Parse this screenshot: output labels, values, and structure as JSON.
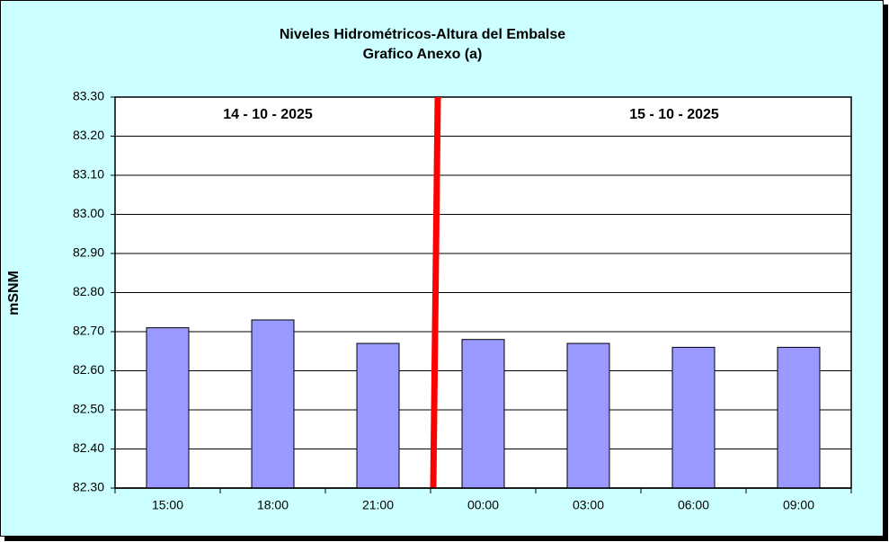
{
  "chart_data": {
    "type": "bar",
    "title": "Niveles Hidrométricos-Altura del Embalse",
    "subtitle": "Grafico Anexo (a)",
    "y_label": "mSNM",
    "annotations": [
      "14 - 10 - 2025",
      "15 - 10 - 2025"
    ],
    "categories": [
      "15:00",
      "18:00",
      "21:00",
      "00:00",
      "03:00",
      "06:00",
      "09:00"
    ],
    "values": [
      82.71,
      82.73,
      82.67,
      82.68,
      82.67,
      82.66,
      82.66
    ],
    "color": "#9999ff",
    "ylim": [
      82.3,
      83.3
    ],
    "yticks": [
      {
        "value": 82.3,
        "label": "82.30"
      },
      {
        "value": 82.4,
        "label": "82.40"
      },
      {
        "value": 82.5,
        "label": "82.50"
      },
      {
        "value": 82.6,
        "label": "82.60"
      },
      {
        "value": 82.7,
        "label": "82.70"
      },
      {
        "value": 82.8,
        "label": "82.80"
      },
      {
        "value": 82.9,
        "label": "82.90"
      },
      {
        "value": 83,
        "label": "83.00"
      },
      {
        "value": 83.1,
        "label": "83.10"
      },
      {
        "value": 83.2,
        "label": "83.20"
      },
      {
        "value": 83.3,
        "label": "83.30"
      }
    ],
    "grid": true
  }
}
